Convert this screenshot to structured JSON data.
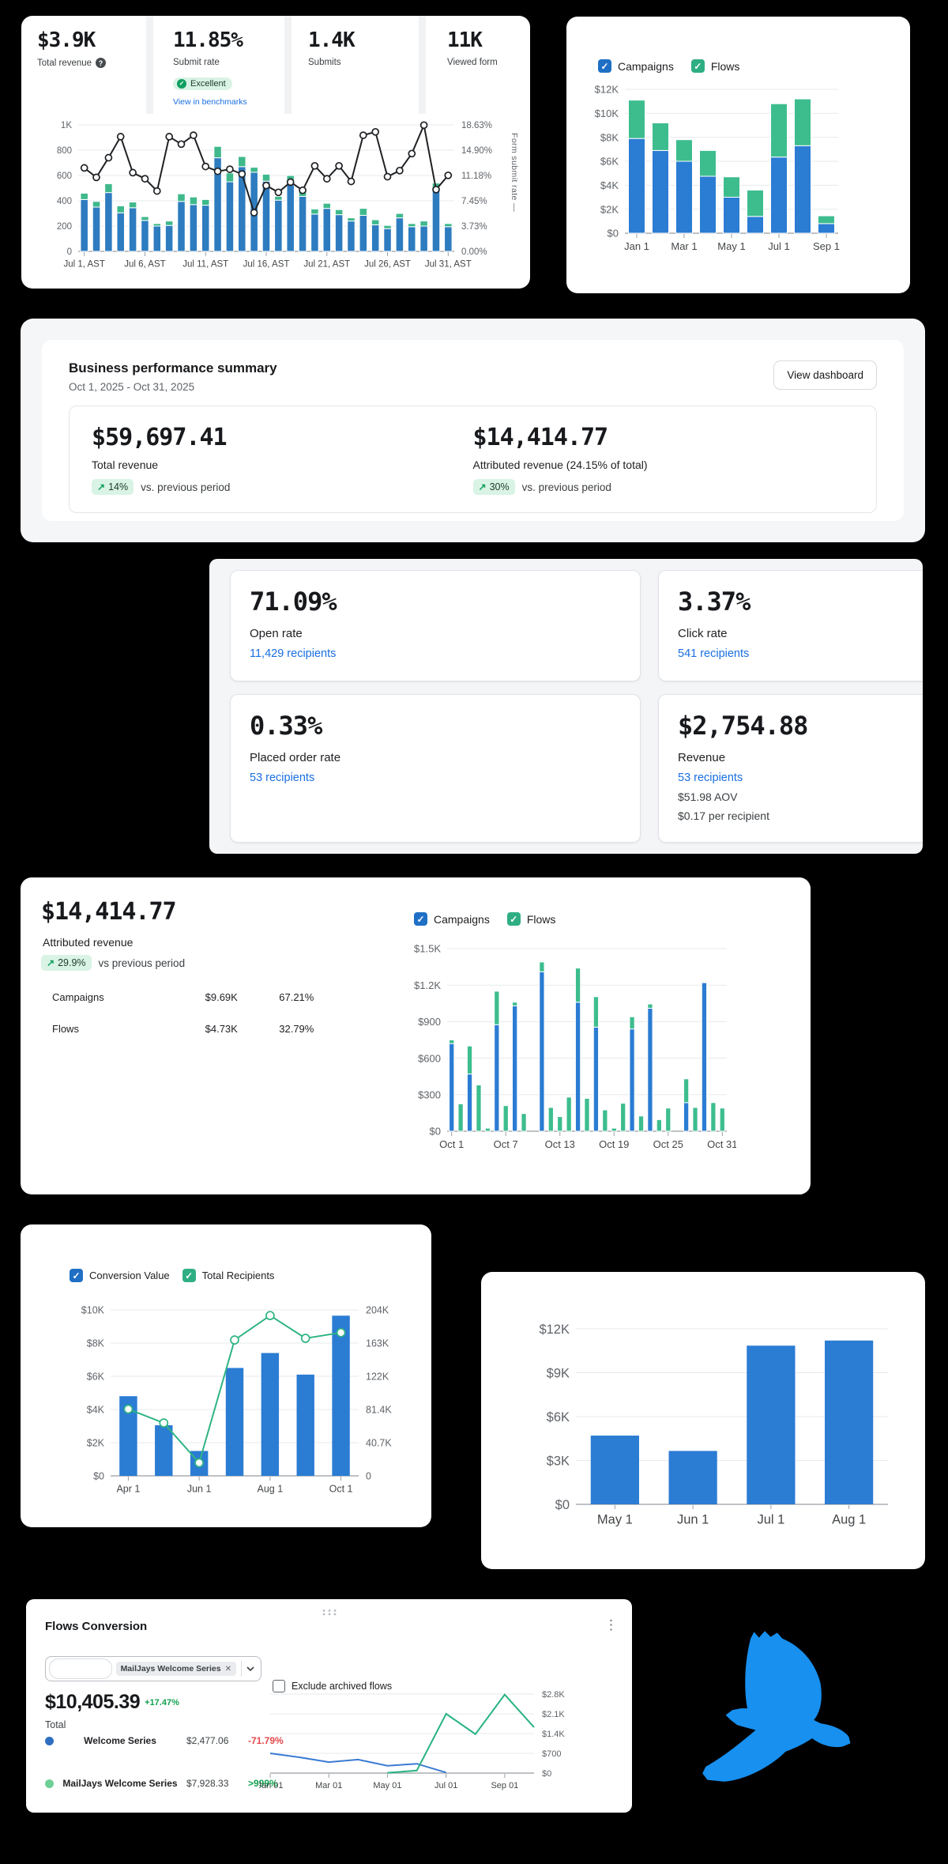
{
  "colors": {
    "bar_blue": "#2b7cd3",
    "bar_green": "#3dbd8e",
    "line_dark": "#1f2124",
    "check_blue": "#1f6fc5",
    "check_green": "#2fae84",
    "link": "#1a6fe0",
    "pos_green": "#12a150",
    "neg_red": "#e5484d",
    "eagle_blue": "#1790f0"
  },
  "form_card": {
    "stats": [
      {
        "value": "$3.9K",
        "label": "Total revenue"
      },
      {
        "value": "11.85%",
        "label": "Submit rate",
        "badge": "Excellent",
        "link": "View in benchmarks"
      },
      {
        "value": "1.4K",
        "label": "Submits"
      },
      {
        "value": "11K",
        "label": "Viewed form"
      }
    ],
    "right_axis_title": "Form submit rate —",
    "chart_data": {
      "type": "combo",
      "x_mode": "slot",
      "n": 31,
      "y_left": {
        "max": 1000,
        "labels": [
          "0",
          "200",
          "400",
          "600",
          "800",
          "1K"
        ]
      },
      "y_right": {
        "max": 18.63,
        "labels": [
          "0.00%",
          "3.73%",
          "7.45%",
          "11.18%",
          "14.90%",
          "18.63%"
        ]
      },
      "bar_series": [
        {
          "name": "submits-blue",
          "color": "#2e7cc0",
          "values": [
            410,
            350,
            465,
            305,
            345,
            245,
            200,
            205,
            395,
            370,
            365,
            740,
            550,
            670,
            625,
            555,
            405,
            525,
            435,
            295,
            340,
            290,
            240,
            285,
            210,
            180,
            265,
            195,
            200,
            490,
            195
          ]
        },
        {
          "name": "submits-green",
          "color": "#3fb98b",
          "values": [
            50,
            45,
            70,
            55,
            45,
            30,
            20,
            35,
            60,
            60,
            45,
            90,
            70,
            80,
            40,
            55,
            30,
            75,
            45,
            40,
            40,
            40,
            25,
            55,
            40,
            25,
            35,
            25,
            40,
            50,
            25
          ]
        }
      ],
      "line_series": [
        {
          "name": "Form submit rate",
          "color": "#1f2124",
          "axis": "right",
          "marker": true,
          "values": [
            12.3,
            10.9,
            13.8,
            16.9,
            11.6,
            10.7,
            8.9,
            16.9,
            15.8,
            17.1,
            12.5,
            11.8,
            12.1,
            11.4,
            5.7,
            9.7,
            8.7,
            10.2,
            9.0,
            12.6,
            10.7,
            12.6,
            10.3,
            17.1,
            17.6,
            11.0,
            11.9,
            14.4,
            18.6,
            9.1,
            11.2
          ]
        }
      ],
      "x_tick_index": [
        0,
        5,
        10,
        15,
        20,
        25,
        30
      ],
      "x_tick_labels": [
        "Jul 1, AST",
        "Jul 6, AST",
        "Jul 11, AST",
        "Jul 16, AST",
        "Jul 21, AST",
        "Jul 26, AST",
        "Jul 31, AST"
      ]
    }
  },
  "monthly_card": {
    "legend": [
      {
        "label": "Campaigns",
        "color": "#1f6fc5"
      },
      {
        "label": "Flows",
        "color": "#2fae84"
      }
    ],
    "chart_data": {
      "type": "bar",
      "x_mode": "slot",
      "n": 9,
      "y_left": {
        "max": 12000,
        "labels": [
          "$0",
          "$2K",
          "$4K",
          "$6K",
          "$8K",
          "$10K",
          "$12K"
        ]
      },
      "bar_series": [
        {
          "name": "Campaigns",
          "color": "#2b7cd3",
          "values": [
            7900,
            6900,
            6000,
            4750,
            3000,
            1400,
            6350,
            7300,
            800
          ]
        },
        {
          "name": "Flows",
          "color": "#3dbd8e",
          "values": [
            3200,
            2300,
            1800,
            2150,
            1700,
            2200,
            4450,
            3900,
            650
          ]
        }
      ],
      "x_tick_index": [
        0,
        2,
        4,
        6,
        8
      ],
      "x_tick_labels": [
        "Jan 1",
        "Mar 1",
        "May 1",
        "Jul 1",
        "Sep 1"
      ]
    }
  },
  "summary_card": {
    "title": "Business performance summary",
    "date_range": "Oct 1, 2025 - Oct 31, 2025",
    "button": "View dashboard",
    "metrics": [
      {
        "value": "$59,697.41",
        "label": "Total revenue",
        "badge": "14%",
        "suffix": "vs. previous period"
      },
      {
        "value": "$14,414.77",
        "label": "Attributed revenue (24.15% of total)",
        "badge": "30%",
        "suffix": "vs. previous period"
      }
    ]
  },
  "metrics_panel": {
    "cards": [
      {
        "value": "71.09%",
        "label": "Open rate",
        "link": "11,429 recipients"
      },
      {
        "value": "3.37%",
        "label": "Click rate",
        "link": "541 recipients"
      },
      {
        "value": "0.33%",
        "label": "Placed order rate",
        "link": "53 recipients"
      },
      {
        "value": "$2,754.88",
        "label": "Revenue",
        "link": "53 recipients",
        "extra1": "$51.98 AOV",
        "extra2": "$0.17 per recipient"
      }
    ]
  },
  "attributed_card": {
    "value": "$14,414.77",
    "label": "Attributed revenue",
    "badge": "29.9%",
    "badge_suffix": "vs previous period",
    "rows": [
      {
        "name": "Campaigns",
        "value": "$9.69K",
        "pct": "67.21%"
      },
      {
        "name": "Flows",
        "value": "$4.73K",
        "pct": "32.79%"
      }
    ],
    "legend": [
      {
        "label": "Campaigns",
        "color": "#1f6fc5"
      },
      {
        "label": "Flows",
        "color": "#2fae84"
      }
    ],
    "chart_data": {
      "type": "bar",
      "x_mode": "slot",
      "n": 31,
      "y_left": {
        "max": 1500,
        "labels": [
          "$0",
          "$300",
          "$600",
          "$900",
          "$1.2K",
          "$1.5K"
        ]
      },
      "bar_series": [
        {
          "name": "Campaigns",
          "color": "#2b7cd3",
          "values": [
            720,
            0,
            470,
            0,
            0,
            875,
            0,
            1030,
            0,
            0,
            1310,
            0,
            0,
            0,
            1060,
            0,
            855,
            0,
            0,
            0,
            840,
            0,
            1010,
            0,
            0,
            0,
            235,
            0,
            1220,
            0,
            0
          ]
        },
        {
          "name": "Flows",
          "color": "#3dbd8e",
          "values": [
            30,
            225,
            230,
            380,
            25,
            275,
            210,
            30,
            145,
            0,
            80,
            195,
            120,
            280,
            280,
            270,
            250,
            175,
            25,
            230,
            100,
            125,
            35,
            95,
            190,
            0,
            195,
            195,
            0,
            235,
            190
          ]
        }
      ],
      "x_tick_index": [
        0,
        6,
        12,
        18,
        24,
        30
      ],
      "x_tick_labels": [
        "Oct 1",
        "Oct 7",
        "Oct 13",
        "Oct 19",
        "Oct 25",
        "Oct 31"
      ]
    }
  },
  "conversion_card": {
    "legend": [
      {
        "label": "Conversion Value",
        "color": "#1f6fc5"
      },
      {
        "label": "Total Recipients",
        "color": "#2fae84"
      }
    ],
    "chart_data": {
      "type": "combo",
      "x_mode": "slot",
      "n": 7,
      "y_left": {
        "max": 10000,
        "labels": [
          "$0",
          "$2K",
          "$4K",
          "$6K",
          "$8K",
          "$10K"
        ]
      },
      "y_right": {
        "max": 204000,
        "labels": [
          "0",
          "40.7K",
          "81.4K",
          "122K",
          "163K",
          "204K"
        ]
      },
      "bar_series": [
        {
          "name": "Conversion Value",
          "color": "#2b7cd3",
          "values": [
            4800,
            3050,
            1500,
            6500,
            7400,
            6100,
            9650
          ]
        }
      ],
      "line_series": [
        {
          "name": "Total Recipients",
          "color": "#2eb482",
          "axis": "right",
          "marker": true,
          "values": [
            82000,
            65000,
            16000,
            167000,
            197000,
            169000,
            176000
          ]
        }
      ],
      "x_tick_index": [
        0,
        2,
        4,
        6
      ],
      "x_tick_labels": [
        "Apr 1",
        "Jun 1",
        "Aug 1",
        "Oct 1"
      ]
    }
  },
  "simple_bar_card": {
    "chart_data": {
      "type": "bar",
      "x_mode": "slot",
      "n": 4,
      "y_left": {
        "max": 12000,
        "labels": [
          "$0",
          "$3K",
          "$6K",
          "$9K",
          "$12K"
        ]
      },
      "bar_series": [
        {
          "name": "Revenue",
          "color": "#2b7cd3",
          "values": [
            4700,
            3650,
            10850,
            11200
          ]
        }
      ],
      "x_tick_index": [
        0,
        1,
        2,
        3
      ],
      "x_tick_labels": [
        "May 1",
        "Jun 1",
        "Jul 1",
        "Aug 1"
      ]
    }
  },
  "flows_card": {
    "title": "Flows Conversion",
    "tag": "MailJays Welcome Series",
    "checkbox_label": "Exclude archived flows",
    "total_value": "$10,405.39",
    "total_delta": "+17.47%",
    "total_label": "Total",
    "rows": [
      {
        "name": "Welcome Series",
        "value": "$2,477.06",
        "delta": "-71.79%",
        "dot_color": "#2f6fc2",
        "delta_color": "#e5484d"
      },
      {
        "name": "MailJays Welcome Series",
        "value": "$7,928.33",
        "delta": ">999%",
        "dot_color": "#6fcf97",
        "delta_color": "#12a150"
      }
    ],
    "chart_data": {
      "type": "line",
      "x_mode": "point",
      "n": 10,
      "y_label_side": "right",
      "y_left": {
        "max": 2800,
        "labels": [
          "$0",
          "$700",
          "$1.4K",
          "$2.1K",
          "$2.8K"
        ]
      },
      "line_series": [
        {
          "name": "Welcome Series",
          "color": "#3b7bd3",
          "axis": "left",
          "values": [
            700,
            560,
            390,
            480,
            260,
            330,
            20,
            null,
            null,
            null
          ]
        },
        {
          "name": "MailJays Welcome Series",
          "color": "#27b380",
          "axis": "left",
          "values": [
            null,
            null,
            null,
            null,
            10,
            90,
            2100,
            1380,
            2780,
            1620
          ]
        }
      ],
      "x_tick_index": [
        0,
        2,
        4,
        6,
        8
      ],
      "x_tick_labels": [
        "Jan 01",
        "Mar 01",
        "May 01",
        "Jul 01",
        "Sep 01"
      ]
    }
  },
  "eagle": {
    "color": "#1790f0"
  }
}
